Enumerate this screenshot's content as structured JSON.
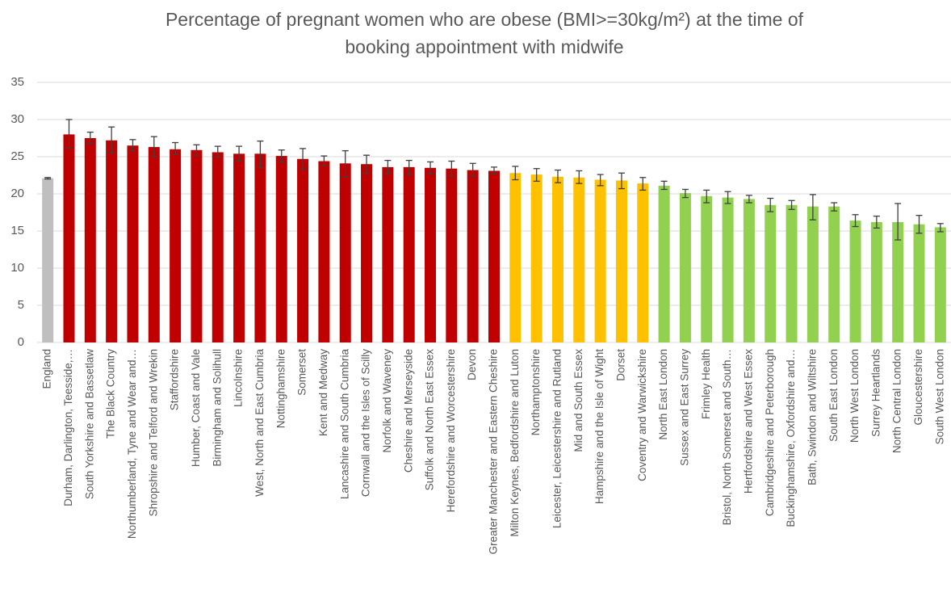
{
  "chart_data": {
    "type": "bar",
    "title": [
      "Percentage of pregnant women who are obese (BMI>=30kg/m²) at the time of",
      "booking appointment with midwife"
    ],
    "categories": [
      "England",
      "Durham, Darlington, Teesside,…",
      "South Yorkshire and Bassetlaw",
      "The Black Country",
      "Northumberland, Tyne and Wear and…",
      "Shropshire and Telford and Wrekin",
      "Staffordshire",
      "Humber, Coast and Vale",
      "Birmingham and Solihull",
      "Lincolnshire",
      "West, North and East Cumbria",
      "Nottinghamshire",
      "Somerset",
      "Kent and Medway",
      "Lancashire and South Cumbria",
      "Cornwall and the Isles of Scilly",
      "Norfolk and Waveney",
      "Cheshire and Merseyside",
      "Suffolk and North East Essex",
      "Herefordshire and Worcestershire",
      "Devon",
      "Greater Manchester and Eastern Cheshire",
      "Milton Keynes, Bedfordshire and Luton",
      "Northamptonshire",
      "Leicester, Leicestershire and Rutland",
      "Mid and South Essex",
      "Hampshire and the Isle of Wight",
      "Dorset",
      "Coventry and Warwickshire",
      "North East London",
      "Sussex and East Surrey",
      "Frimley Health",
      "Bristol, North Somerset and South…",
      "Hertfordshire and West Essex",
      "Cambridgeshire and Peterborough",
      "Buckinghamshire, Oxfordshire and…",
      "Bath, Swindon and Wiltshire",
      "South East London",
      "North West London",
      "Surrey Heartlands",
      "North Central London",
      "Gloucestershire",
      "South West London"
    ],
    "values": [
      22.1,
      28.0,
      27.5,
      27.2,
      26.5,
      26.3,
      26.0,
      25.9,
      25.6,
      25.4,
      25.4,
      25.1,
      24.7,
      24.4,
      24.1,
      24.0,
      23.6,
      23.6,
      23.5,
      23.4,
      23.2,
      23.1,
      22.8,
      22.6,
      22.3,
      22.2,
      21.9,
      21.8,
      21.4,
      21.1,
      20.1,
      19.7,
      19.5,
      19.3,
      18.5,
      18.5,
      18.3,
      18.3,
      16.4,
      16.2,
      16.2,
      15.9,
      15.5
    ],
    "lower": [
      22.0,
      26.2,
      26.8,
      25.5,
      25.8,
      25.0,
      25.3,
      25.2,
      25.0,
      24.4,
      23.5,
      24.3,
      23.3,
      23.8,
      22.3,
      22.8,
      22.7,
      22.6,
      22.7,
      22.4,
      22.4,
      22.7,
      21.9,
      21.7,
      21.5,
      21.4,
      21.1,
      20.7,
      20.5,
      20.6,
      19.5,
      18.8,
      18.7,
      18.8,
      17.6,
      17.9,
      16.5,
      17.7,
      15.6,
      15.4,
      13.8,
      14.7,
      14.9
    ],
    "upper": [
      22.2,
      30.0,
      28.3,
      29.0,
      27.3,
      27.7,
      26.9,
      26.6,
      26.4,
      26.4,
      27.1,
      25.9,
      26.1,
      25.1,
      25.8,
      25.2,
      24.5,
      24.5,
      24.3,
      24.4,
      24.1,
      23.6,
      23.7,
      23.4,
      23.2,
      23.1,
      22.6,
      22.8,
      22.2,
      21.7,
      20.6,
      20.5,
      20.3,
      19.8,
      19.4,
      19.1,
      19.9,
      18.8,
      17.2,
      17.0,
      18.7,
      17.1,
      16.0
    ],
    "colors": [
      "#bfbfbf",
      "#c00000",
      "#c00000",
      "#c00000",
      "#c00000",
      "#c00000",
      "#c00000",
      "#c00000",
      "#c00000",
      "#c00000",
      "#c00000",
      "#c00000",
      "#c00000",
      "#c00000",
      "#c00000",
      "#c00000",
      "#c00000",
      "#c00000",
      "#c00000",
      "#c00000",
      "#c00000",
      "#c00000",
      "#ffc000",
      "#ffc000",
      "#ffc000",
      "#ffc000",
      "#ffc000",
      "#ffc000",
      "#ffc000",
      "#92d050",
      "#92d050",
      "#92d050",
      "#92d050",
      "#92d050",
      "#92d050",
      "#92d050",
      "#92d050",
      "#92d050",
      "#92d050",
      "#92d050",
      "#92d050",
      "#92d050",
      "#92d050"
    ],
    "ylim": [
      0,
      35
    ],
    "yticks": [
      0,
      5,
      10,
      15,
      20,
      25,
      30,
      35
    ],
    "grid": true
  }
}
